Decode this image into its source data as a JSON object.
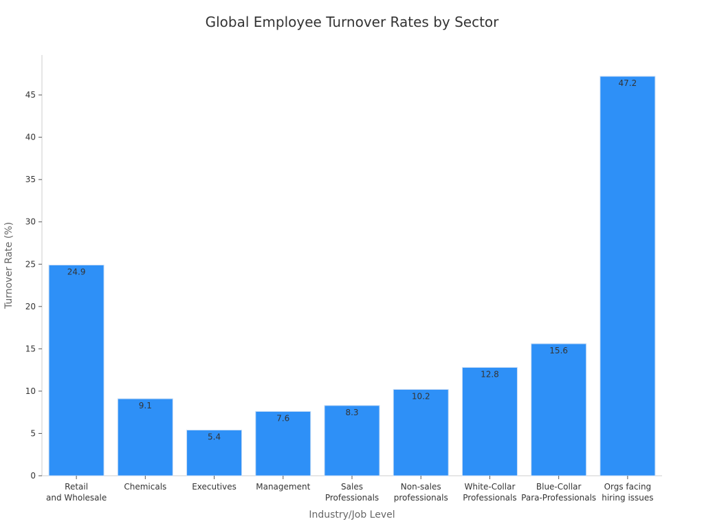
{
  "chart_data": {
    "type": "bar",
    "title": "Global Employee Turnover Rates by Sector",
    "xlabel": "Industry/Job Level",
    "ylabel": "Turnover Rate (%)",
    "categories": [
      [
        "Retail",
        "and Wholesale"
      ],
      [
        "Chemicals"
      ],
      [
        "Executives"
      ],
      [
        "Management"
      ],
      [
        "Sales",
        "Professionals"
      ],
      [
        "Non-sales",
        "professionals"
      ],
      [
        "White-Collar",
        "Professionals"
      ],
      [
        "Blue-Collar",
        "Para-Professionals"
      ],
      [
        "Orgs facing",
        "hiring issues"
      ]
    ],
    "values": [
      24.9,
      9.1,
      5.4,
      7.6,
      8.3,
      10.2,
      12.8,
      15.6,
      47.2
    ],
    "data_labels": [
      "24.9",
      "9.1",
      "5.4",
      "7.6",
      "8.3",
      "10.2",
      "12.8",
      "15.6",
      "47.2"
    ],
    "yticks": [
      0,
      5,
      10,
      15,
      20,
      25,
      30,
      35,
      40,
      45
    ],
    "ylim": [
      0,
      49
    ],
    "grid": false,
    "legend": "none",
    "colors": {
      "bar": "#2e90f7",
      "bar_edge": "#c8ddf5",
      "axis": "#cccccc",
      "tick_text": "#333333",
      "label_text": "#666666",
      "value_text": "#333333"
    }
  }
}
